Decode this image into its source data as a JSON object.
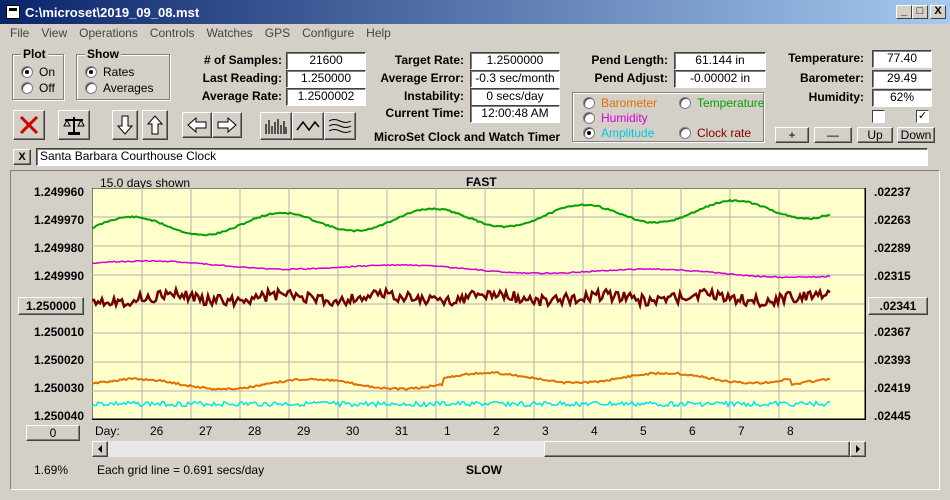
{
  "window": {
    "title": "C:\\microset\\2019_09_08.mst",
    "min": "_",
    "max": "□",
    "close": "X"
  },
  "menu": [
    "File",
    "View",
    "Operations",
    "Controls",
    "Watches",
    "GPS",
    "Configure",
    "Help"
  ],
  "plot_group": {
    "title": "Plot",
    "options": [
      "On",
      "Off"
    ],
    "selected": 0
  },
  "show_group": {
    "title": "Show",
    "options": [
      "Rates",
      "Averages"
    ],
    "selected": 0
  },
  "stats": {
    "samples_label": "# of Samples:",
    "samples": "21600",
    "last_label": "Last Reading:",
    "last": "1.250000",
    "avg_label": "Average Rate:",
    "avg": "1.2500002",
    "target_label": "Target Rate:",
    "target": "1.2500000",
    "error_label": "Average Error:",
    "error": "-0.3 sec/month",
    "instab_label": "Instability:",
    "instab": "0 secs/day",
    "time_label": "Current Time:",
    "time": "12:00:48 AM",
    "pendlen_label": "Pend Length:",
    "pendlen": "61.144 in",
    "pendadj_label": "Pend Adjust:",
    "pendadj": "-0.00002 in",
    "temp_label": "Temperature:",
    "temp": "77.40",
    "baro_label": "Barometer:",
    "baro": "29.49",
    "hum_label": "Humidity:",
    "hum": "62%"
  },
  "app_name": "MicroSet Clock and Watch Timer",
  "trace_options": [
    {
      "label": "Barometer",
      "color": "#e07000",
      "selected": false
    },
    {
      "label": "Temperature",
      "color": "#00a000",
      "selected": false
    },
    {
      "label": "Humidity",
      "color": "#d000d0",
      "selected": false
    },
    {
      "label": "Amplitude",
      "color": "#00c8e0",
      "selected": true
    },
    {
      "label": "Clock rate",
      "color": "#800000",
      "selected": false
    }
  ],
  "scale_buttons": {
    "plus": "+",
    "minus": "—",
    "up": "Up",
    "down": "Down"
  },
  "checkboxes": [
    false,
    true
  ],
  "clock_name": "Santa Barbara Courthouse Clock",
  "clear_button": "X",
  "plot": {
    "days_shown": "15.0 days shown",
    "top_label": "FAST",
    "bottom_label": "SLOW",
    "center_button": "1.250000",
    "center_right_button": ".02341",
    "zero_button": "0",
    "percent": "1.69%",
    "grid_note": "Each grid line = 0.691 secs/day",
    "day_prefix": "Day:",
    "left_ticks": [
      "1.249960",
      "1.249970",
      "1.249980",
      "1.249990",
      "",
      "1.250010",
      "1.250020",
      "1.250030",
      "1.250040"
    ],
    "right_ticks": [
      ".02237",
      ".02263",
      ".02289",
      ".02315",
      "",
      ".02367",
      ".02393",
      ".02419",
      ".02445"
    ],
    "days": [
      "26",
      "27",
      "28",
      "29",
      "30",
      "31",
      "1",
      "2",
      "3",
      "4",
      "5",
      "6",
      "7",
      "8"
    ]
  },
  "colors": {
    "plot_bg": "#ffffcc",
    "temperature": "#00a000",
    "humidity": "#d000d0",
    "clock_rate": "#700000",
    "barometer": "#e07000",
    "amplitude": "#00e0f0",
    "stop_x": "#d00000"
  }
}
